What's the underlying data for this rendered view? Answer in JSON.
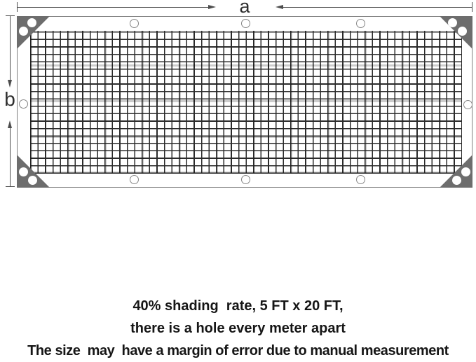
{
  "diagram": {
    "width_label": "a",
    "height_label": "b",
    "grommets": {
      "top_edge_count": 3,
      "bottom_edge_count": 3,
      "left_edge_count": 1,
      "right_edge_count": 1,
      "per_corner_count": 2
    }
  },
  "caption": {
    "line1": "40% shading  rate, 5 FT x 20 FT,",
    "line2": "there is a hole every meter apart",
    "line3": "The size  may  have a margin of error due to manual measurement"
  },
  "colors": {
    "corner_reinforcement": "#6d6d6d",
    "mesh_line": "#2b2b2b",
    "dimension_line": "#4d4d4d",
    "grommet_ring": "#868686",
    "text": "#161616",
    "background": "#ffffff"
  }
}
